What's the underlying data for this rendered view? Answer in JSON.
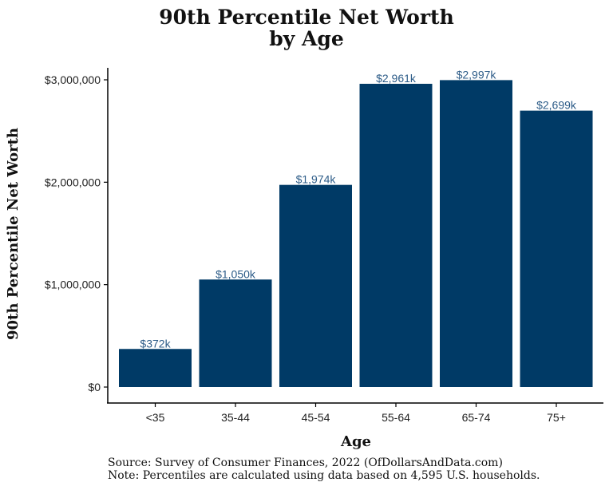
{
  "chart_data": {
    "type": "bar",
    "title": [
      "90th Percentile Net Worth",
      "by Age"
    ],
    "xlabel": "Age",
    "ylabel": "90th Percentile Net Worth",
    "categories": [
      "<35",
      "35-44",
      "45-54",
      "55-64",
      "65-74",
      "75+"
    ],
    "values": [
      372000,
      1050000,
      1974000,
      2961000,
      2997000,
      2699000
    ],
    "data_labels": [
      "$372k",
      "$1,050k",
      "$1,974k",
      "$2,961k",
      "$2,997k",
      "$2,699k"
    ],
    "yticks": [
      0,
      1000000,
      2000000,
      3000000
    ],
    "ytick_labels": [
      "$0",
      "$1,000,000",
      "$2,000,000",
      "$3,000,000"
    ],
    "ylim": [
      0,
      3000000
    ],
    "grid": false,
    "legend": "none",
    "colors": {
      "bar": "#003a66",
      "data_label": "#2d5c88"
    }
  },
  "footer": {
    "source": "Source:  Survey of Consumer Finances, 2022 (OfDollarsAndData.com)",
    "note": "Note: Percentiles are calculated using data based on 4,595 U.S. households."
  }
}
